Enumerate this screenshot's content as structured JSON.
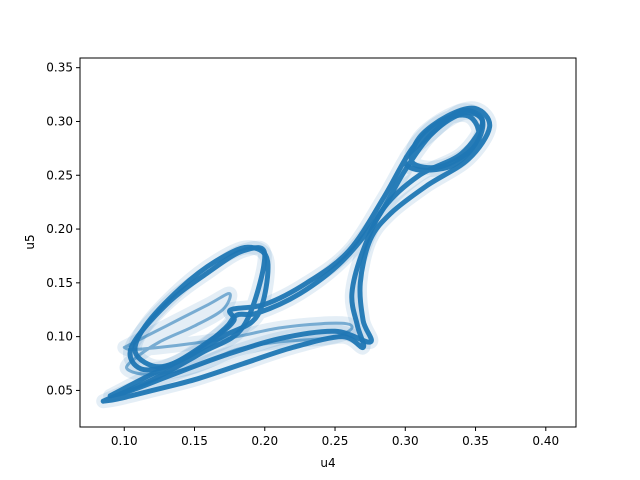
{
  "chart_data": {
    "type": "line",
    "title": "",
    "xlabel": "u4",
    "ylabel": "u5",
    "xlim": [
      0.0685,
      0.4215
    ],
    "ylim": [
      0.016,
      0.359
    ],
    "xticks": [
      0.1,
      0.15,
      0.2,
      0.25,
      0.3,
      0.35,
      0.4
    ],
    "xtick_labels": [
      "0.10",
      "0.15",
      "0.20",
      "0.25",
      "0.30",
      "0.35",
      "0.40"
    ],
    "yticks": [
      0.05,
      0.1,
      0.15,
      0.2,
      0.25,
      0.3,
      0.35
    ],
    "ytick_labels": [
      "0.05",
      "0.10",
      "0.15",
      "0.20",
      "0.25",
      "0.30",
      "0.35"
    ],
    "grid": false,
    "legend": "none",
    "color": "#1f77b4",
    "series": [
      {
        "x": [
          0.085,
          0.12,
          0.155,
          0.185,
          0.2,
          0.185,
          0.16,
          0.13,
          0.105,
          0.112,
          0.135,
          0.165,
          0.178,
          0.176,
          0.2,
          0.23,
          0.26,
          0.285,
          0.305,
          0.325,
          0.345,
          0.352,
          0.335,
          0.31,
          0.3,
          0.32,
          0.34,
          0.355,
          0.34,
          0.31,
          0.285,
          0.27,
          0.262,
          0.266,
          0.27,
          0.255,
          0.22,
          0.185,
          0.15,
          0.12,
          0.095,
          0.085
        ],
        "y": [
          0.04,
          0.06,
          0.085,
          0.11,
          0.175,
          0.18,
          0.16,
          0.13,
          0.09,
          0.07,
          0.075,
          0.1,
          0.115,
          0.125,
          0.13,
          0.15,
          0.18,
          0.23,
          0.275,
          0.3,
          0.305,
          0.285,
          0.26,
          0.255,
          0.265,
          0.29,
          0.31,
          0.3,
          0.27,
          0.25,
          0.22,
          0.18,
          0.14,
          0.11,
          0.09,
          0.1,
          0.09,
          0.075,
          0.06,
          0.05,
          0.042,
          0.04
        ]
      },
      {
        "x": [
          0.09,
          0.115,
          0.14,
          0.17,
          0.195,
          0.202,
          0.188,
          0.165,
          0.14,
          0.115,
          0.108,
          0.125,
          0.15,
          0.172,
          0.18,
          0.195,
          0.225,
          0.255,
          0.28,
          0.3,
          0.32,
          0.342,
          0.355,
          0.348,
          0.325,
          0.305,
          0.31,
          0.33,
          0.35,
          0.36,
          0.345,
          0.315,
          0.29,
          0.275,
          0.268,
          0.27,
          0.275,
          0.25,
          0.21,
          0.17,
          0.135,
          0.105,
          0.09
        ],
        "y": [
          0.045,
          0.062,
          0.078,
          0.1,
          0.12,
          0.17,
          0.183,
          0.17,
          0.145,
          0.11,
          0.085,
          0.072,
          0.085,
          0.108,
          0.12,
          0.122,
          0.14,
          0.17,
          0.21,
          0.255,
          0.29,
          0.308,
          0.3,
          0.275,
          0.258,
          0.262,
          0.285,
          0.305,
          0.312,
          0.295,
          0.265,
          0.24,
          0.215,
          0.19,
          0.15,
          0.115,
          0.095,
          0.105,
          0.098,
          0.082,
          0.065,
          0.05,
          0.045
        ]
      },
      {
        "x": [
          0.1,
          0.13,
          0.16,
          0.175,
          0.17,
          0.15,
          0.125,
          0.108,
          0.102,
          0.118,
          0.15,
          0.18,
          0.21,
          0.24,
          0.255,
          0.262,
          0.258,
          0.24,
          0.21,
          0.18,
          0.15,
          0.125,
          0.105,
          0.1
        ],
        "y": [
          0.09,
          0.11,
          0.13,
          0.14,
          0.125,
          0.11,
          0.095,
          0.08,
          0.07,
          0.065,
          0.072,
          0.088,
          0.095,
          0.098,
          0.102,
          0.108,
          0.112,
          0.112,
          0.108,
          0.1,
          0.094,
          0.09,
          0.088,
          0.09
        ]
      }
    ]
  }
}
